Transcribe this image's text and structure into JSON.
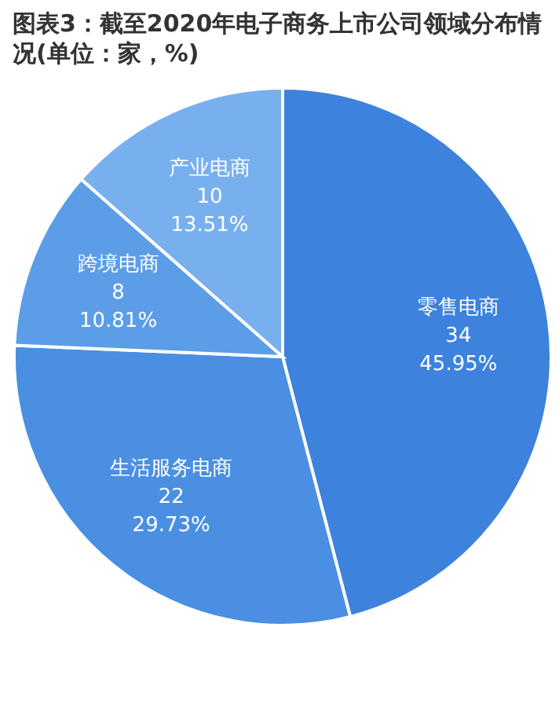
{
  "chart_data": {
    "type": "pie",
    "title": "图表3：截至2020年电子商务上市公司领域分布情况(单位：家，%)",
    "categories": [
      "零售电商",
      "生活服务电商",
      "跨境电商",
      "产业电商"
    ],
    "values": [
      34,
      22,
      8,
      10
    ],
    "value_labels": [
      "34\n45.95%",
      "22\n29.73%",
      "8\n10.81%",
      "10\n13.51%"
    ],
    "colors": [
      "#3d82dc",
      "#4a8fe2",
      "#5c9de8",
      "#78b0ee"
    ]
  }
}
